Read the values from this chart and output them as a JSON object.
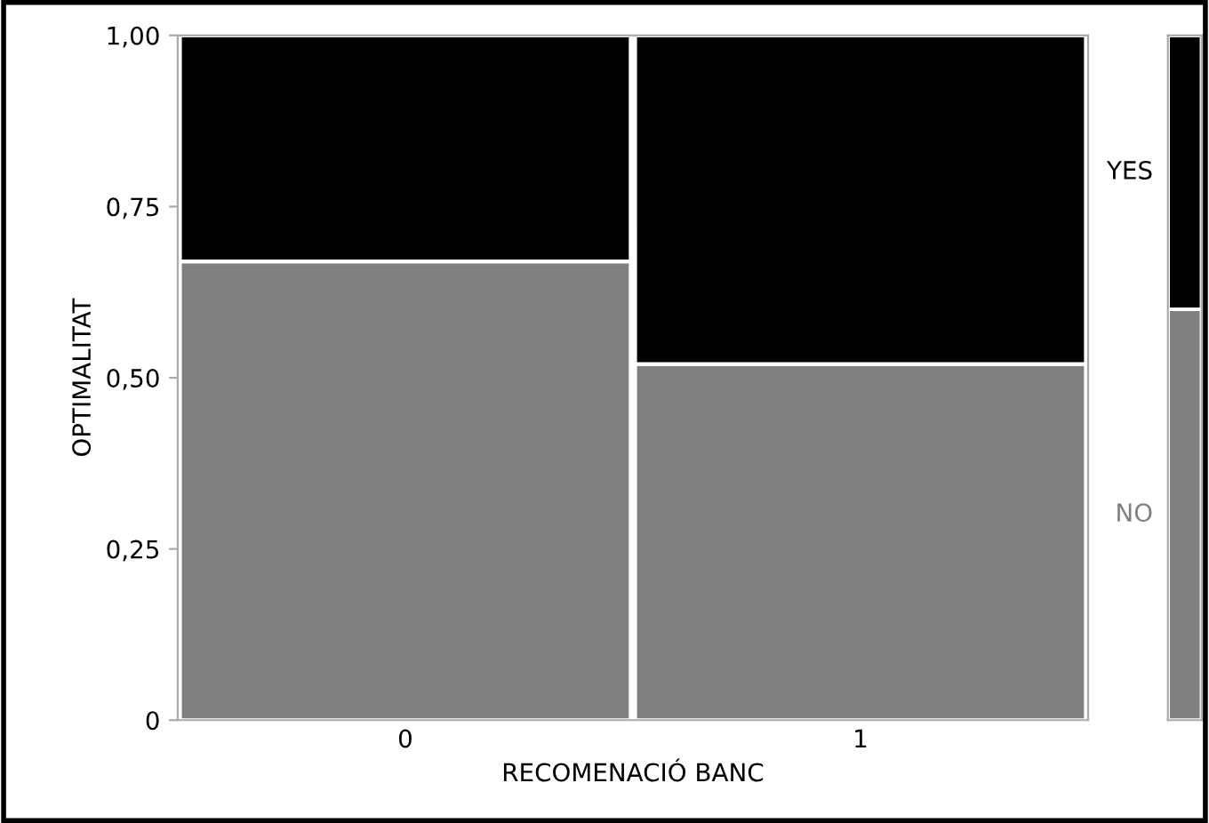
{
  "chart_data": [
    {
      "type": "bar",
      "stacked": true,
      "xlabel": "RECOMENACIÓ BANC",
      "ylabel": "OPTIMALITAT",
      "categories": [
        "0",
        "1"
      ],
      "ylim": [
        0,
        1
      ],
      "yticks": [
        {
          "value": 0,
          "label": "0"
        },
        {
          "value": 0.25,
          "label": "0,25"
        },
        {
          "value": 0.5,
          "label": "0,50"
        },
        {
          "value": 0.75,
          "label": "0,75"
        },
        {
          "value": 1,
          "label": "1,00"
        }
      ],
      "grid": false,
      "series": [
        {
          "color": "#808080",
          "values": [
            0.67,
            0.52
          ]
        },
        {
          "color": "#000000",
          "values": [
            0.33,
            0.48
          ]
        }
      ]
    },
    {
      "type": "bar",
      "stacked": true,
      "categories": [
        null
      ],
      "ylim": [
        0,
        1
      ],
      "series": [
        {
          "name": "NO",
          "color": "#808080",
          "values": [
            0.6
          ]
        },
        {
          "name": "YES",
          "color": "#000000",
          "values": [
            0.4
          ]
        }
      ]
    }
  ]
}
